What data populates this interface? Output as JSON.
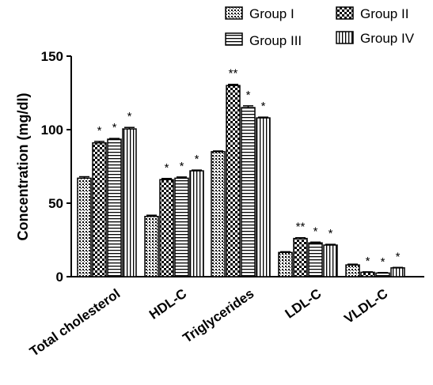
{
  "chart_data": {
    "type": "bar",
    "title": "",
    "xlabel": "",
    "ylabel": "Concentration (mg/dl)",
    "ylim": [
      0,
      150
    ],
    "yticks": [
      "0",
      "50",
      "100",
      "150"
    ],
    "categories": [
      "Total cholesterol",
      "HDL-C",
      "Triglycerides",
      "LDL-C",
      "VLDL-C"
    ],
    "series": [
      {
        "name": "Group I",
        "values": [
          67,
          41,
          85,
          16.5,
          8
        ],
        "errors": [
          1,
          0.8,
          0.5,
          0.5,
          0.5
        ],
        "annotations": [
          "",
          "",
          "",
          "",
          ""
        ]
      },
      {
        "name": "Group II",
        "values": [
          91,
          66,
          130,
          26,
          3
        ],
        "errors": [
          1,
          0.8,
          0.8,
          0.5,
          0.3
        ],
        "annotations": [
          "*",
          "*",
          "**",
          "**",
          "*"
        ]
      },
      {
        "name": "Group III",
        "values": [
          93.5,
          67,
          115,
          23,
          2.5
        ],
        "errors": [
          0.5,
          0.8,
          1.2,
          0.5,
          0.3
        ],
        "annotations": [
          "*",
          "*",
          "*",
          "*",
          "*"
        ]
      },
      {
        "name": "Group IV",
        "values": [
          100.5,
          72,
          108,
          21.5,
          6
        ],
        "errors": [
          1,
          0.5,
          0.5,
          0.5,
          0.3
        ],
        "annotations": [
          "*",
          "*",
          "*",
          "*",
          "*"
        ]
      }
    ],
    "patterns": [
      "dots",
      "checker",
      "hlines",
      "vlines"
    ],
    "legend_position": "top-right",
    "grid": false
  }
}
